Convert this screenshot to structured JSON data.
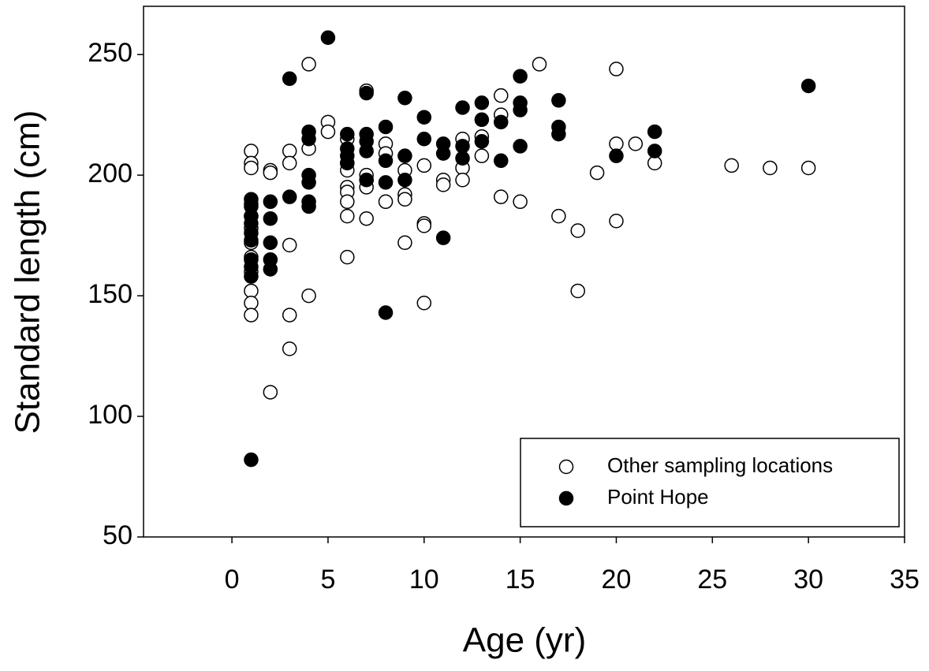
{
  "chart_data": {
    "type": "scatter",
    "x_label": "Age (yr)",
    "y_label": "Standard length (cm)",
    "xlim": [
      -4.6,
      35
    ],
    "ylim": [
      50,
      270
    ],
    "xticks": [
      0,
      5,
      10,
      15,
      20,
      25,
      30,
      35
    ],
    "yticks": [
      50,
      100,
      150,
      200,
      250
    ],
    "grid": false,
    "legend": "lower right",
    "series": [
      {
        "name": "Other sampling locations",
        "color": "#000000",
        "filled": false,
        "x": [
          1,
          1,
          1,
          1,
          1,
          1,
          1,
          1,
          1,
          1,
          1,
          1,
          2,
          2,
          2,
          3,
          3,
          3,
          3,
          3,
          4,
          4,
          4,
          5,
          5,
          6,
          6,
          6,
          6,
          6,
          6,
          6,
          6,
          7,
          7,
          7,
          7,
          7,
          8,
          8,
          8,
          9,
          9,
          9,
          9,
          10,
          10,
          10,
          10,
          11,
          11,
          12,
          12,
          12,
          13,
          13,
          14,
          14,
          14,
          15,
          16,
          17,
          18,
          18,
          19,
          20,
          20,
          20,
          21,
          22,
          26,
          28,
          30
        ],
        "values": [
          210,
          205,
          203,
          188,
          183,
          178,
          172,
          166,
          160,
          152,
          147,
          142,
          202,
          201,
          110,
          210,
          205,
          171,
          142,
          128,
          246,
          211,
          150,
          222,
          218,
          215,
          205,
          202,
          195,
          193,
          189,
          183,
          166,
          235,
          200,
          198,
          195,
          182,
          213,
          209,
          189,
          202,
          192,
          190,
          172,
          204,
          180,
          179,
          147,
          198,
          196,
          215,
          203,
          198,
          216,
          208,
          233,
          225,
          191,
          189,
          246,
          183,
          177,
          152,
          201,
          244,
          213,
          181,
          213,
          205,
          204,
          203,
          203
        ]
      },
      {
        "name": "Point Hope",
        "color": "#000000",
        "filled": true,
        "x": [
          1,
          1,
          1,
          1,
          1,
          1,
          1,
          1,
          1,
          1,
          2,
          2,
          2,
          2,
          2,
          3,
          3,
          4,
          4,
          4,
          4,
          4,
          4,
          5,
          6,
          6,
          6,
          6,
          7,
          7,
          7,
          7,
          7,
          8,
          8,
          8,
          8,
          9,
          9,
          9,
          10,
          10,
          11,
          11,
          11,
          12,
          12,
          12,
          13,
          13,
          13,
          14,
          14,
          15,
          15,
          15,
          15,
          17,
          17,
          17,
          20,
          22,
          22,
          30
        ],
        "values": [
          190,
          187,
          183,
          180,
          176,
          173,
          165,
          162,
          158,
          82,
          189,
          182,
          172,
          165,
          161,
          240,
          191,
          218,
          215,
          200,
          197,
          189,
          187,
          257,
          217,
          211,
          208,
          205,
          217,
          214,
          210,
          234,
          198,
          220,
          206,
          197,
          143,
          232,
          208,
          198,
          224,
          215,
          213,
          209,
          174,
          228,
          212,
          207,
          230,
          223,
          214,
          222,
          206,
          241,
          230,
          227,
          212,
          231,
          220,
          217,
          208,
          218,
          210,
          237
        ]
      }
    ]
  }
}
